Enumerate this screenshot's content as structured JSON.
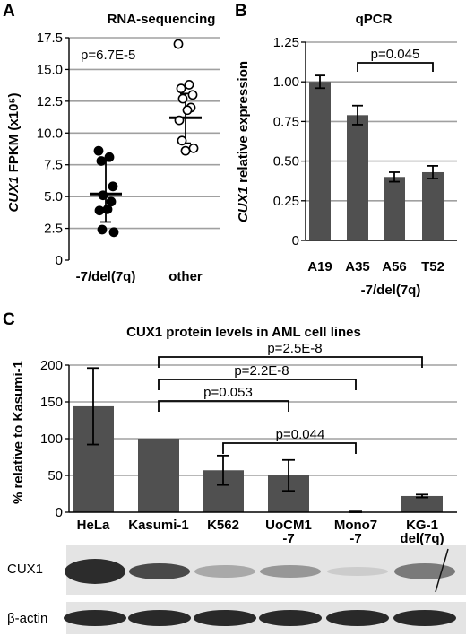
{
  "panels": {
    "a": {
      "letter": "A"
    },
    "b": {
      "letter": "B"
    },
    "c": {
      "letter": "C"
    }
  },
  "blot": {
    "cux1_label": "CUX1",
    "actin_label": "β-actin"
  },
  "colors": {
    "bar": "#505050",
    "gridline": "#a0a0a0",
    "axis": "#000000",
    "blot_bg": "#e4e4e4",
    "band": "#222222"
  },
  "chart_data": [
    {
      "id": "A",
      "type": "scatter",
      "title": "RNA-sequencing",
      "ylabel_italic": "CUX1",
      "ylabel_rest": " FPKM (x10⁵)",
      "ylim": [
        0,
        17.5
      ],
      "yticks": [
        "0",
        "2.5",
        "5.0",
        "7.5",
        "10.0",
        "12.5",
        "15.0",
        "17.5"
      ],
      "grid": true,
      "categories": [
        "-7/del(7q)",
        "other"
      ],
      "annotation": "p=6.7E-5",
      "groups": [
        {
          "name": "-7/del(7q)",
          "marker": "filled",
          "median": 5.2,
          "err_low": 3.0,
          "err_high": 7.8,
          "points": [
            8.6,
            8.1,
            7.8,
            5.8,
            5.1,
            4.6,
            4.0,
            3.9,
            2.4,
            2.2
          ]
        },
        {
          "name": "other",
          "marker": "open",
          "median": 11.2,
          "err_low": 9.2,
          "err_high": 13.1,
          "points": [
            17.0,
            13.8,
            13.5,
            13.0,
            12.7,
            12.0,
            11.8,
            11.0,
            9.4,
            8.8,
            8.6
          ]
        }
      ]
    },
    {
      "id": "B",
      "type": "bar",
      "title": "qPCR",
      "ylabel_italic": "CUX1",
      "ylabel_rest": " relative expression",
      "ylim": [
        0,
        1.25
      ],
      "yticks": [
        "0",
        "0.25",
        "0.50",
        "0.75",
        "1.00",
        "1.25"
      ],
      "grid": true,
      "categories": [
        "A19",
        "A35",
        "A56",
        "T52"
      ],
      "group_label": "-7/del(7q)",
      "values": [
        1.0,
        0.79,
        0.4,
        0.43
      ],
      "errors": [
        0.04,
        0.06,
        0.03,
        0.04
      ],
      "annotation": "p=0.045"
    },
    {
      "id": "C",
      "type": "bar",
      "title": "CUX1 protein levels in AML cell lines",
      "ylabel": "% relative to Kasumi-1",
      "ylim": [
        0,
        200
      ],
      "yticks": [
        "0",
        "50",
        "100",
        "150",
        "200"
      ],
      "grid": true,
      "categories": [
        "HeLa",
        "Kasumi-1",
        "K562",
        "UoCM1",
        "Mono7",
        "KG-1"
      ],
      "sublabels": [
        "",
        "",
        "",
        "-7",
        "-7",
        "del(7q)"
      ],
      "values": [
        144,
        100,
        57,
        50,
        0,
        22
      ],
      "errors": [
        52,
        0,
        20,
        21,
        1,
        2
      ],
      "comparisons": [
        {
          "label": "p=2.5E-8",
          "from": 1,
          "to": 5
        },
        {
          "label": "p=2.2E-8",
          "from": 1,
          "to": 4
        },
        {
          "label": "p=0.053",
          "from": 1,
          "to": 3
        },
        {
          "label": "p=0.044",
          "from": 2,
          "to": 4
        }
      ]
    }
  ]
}
